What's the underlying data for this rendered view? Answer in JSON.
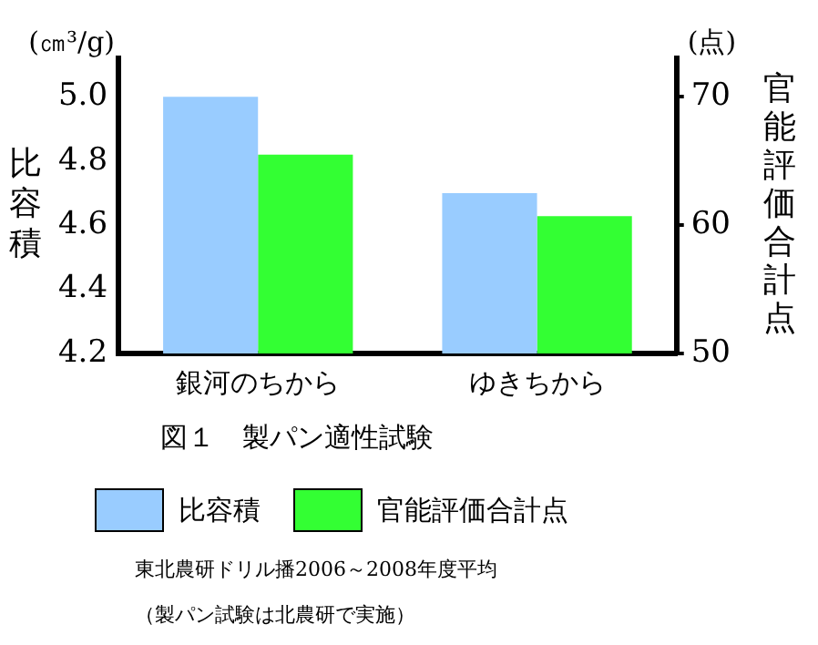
{
  "chart_data": {
    "type": "bar",
    "title": "図１　製パン適性試験",
    "ylabel": "比容積",
    "y2label": "官能評価合計点",
    "categories": [
      "銀河のちから",
      "ゆきちから"
    ],
    "series": [
      {
        "name": "比容積",
        "color": "#99ccff",
        "values": [
          5.0,
          4.7
        ]
      },
      {
        "name": "官能評価合計点",
        "color": "#33ff33",
        "values": [
          65.5,
          60.7
        ],
        "axis": "y2"
      }
    ],
    "ylim": [
      4.2,
      5.12
    ],
    "yticks": [
      {
        "value": 4.2,
        "label": "4.2"
      },
      {
        "value": 4.4,
        "label": "4.4"
      },
      {
        "value": 4.6,
        "label": "4.6"
      },
      {
        "value": 4.8,
        "label": "4.8"
      },
      {
        "value": 5.0,
        "label": "5.0"
      }
    ],
    "y2lim": [
      50,
      73
    ],
    "y2ticks": [
      50,
      60,
      70
    ],
    "annotations": [
      "(㎝³/g)",
      "(点)",
      "東北農研ドリル播2006～2008年度平均",
      "（製パン試験は北農研で実施）"
    ],
    "grid": false,
    "legend": "bottom"
  }
}
